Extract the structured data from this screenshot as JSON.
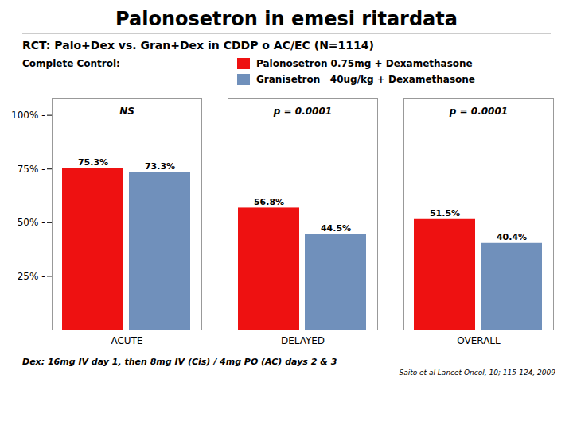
{
  "chart_data": {
    "type": "bar",
    "title": "Palonosetron in emesi ritardata",
    "subtitle": "RCT: Palo+Dex vs. Gran+Dex in CDDP o AC/EC (N=1114)",
    "legend_title": "Complete Control:",
    "legend": "top",
    "categories": [
      "ACUTE",
      "DELAYED",
      "OVERALL"
    ],
    "series": [
      {
        "name": "Palonosetron 0.75mg + Dexamethasone",
        "color": "#EE1111",
        "values": [
          75.3,
          56.8,
          51.5
        ],
        "value_labels": [
          "75.3%",
          "56.8%",
          "51.5%"
        ]
      },
      {
        "name": "Granisetron   40ug/kg + Dexamethasone",
        "color": "#7090BB",
        "values": [
          73.3,
          44.5,
          40.4
        ],
        "value_labels": [
          "73.3%",
          "44.5%",
          "40.4%"
        ]
      }
    ],
    "data_labels": true,
    "ylim": [
      0,
      108
    ],
    "yticks": [
      {
        "value": 25,
        "label": "25% -"
      },
      {
        "value": 50,
        "label": "50% -"
      },
      {
        "value": 75,
        "label": "75% -"
      },
      {
        "value": 100,
        "label": "100% -"
      }
    ],
    "grid": false,
    "annotations": [
      {
        "category": "ACUTE",
        "y": 102,
        "text": "NS"
      },
      {
        "category": "DELAYED",
        "y": 102,
        "text": "p = 0.0001"
      },
      {
        "category": "OVERALL",
        "y": 102,
        "text": "p = 0.0001"
      }
    ],
    "footer": "Dex: 16mg IV day 1, then 8mg IV (Cis) / 4mg PO (AC) days 2 & 3",
    "citation": "Saito et al  Lancet Oncol, 10; 115-124, 2009"
  }
}
